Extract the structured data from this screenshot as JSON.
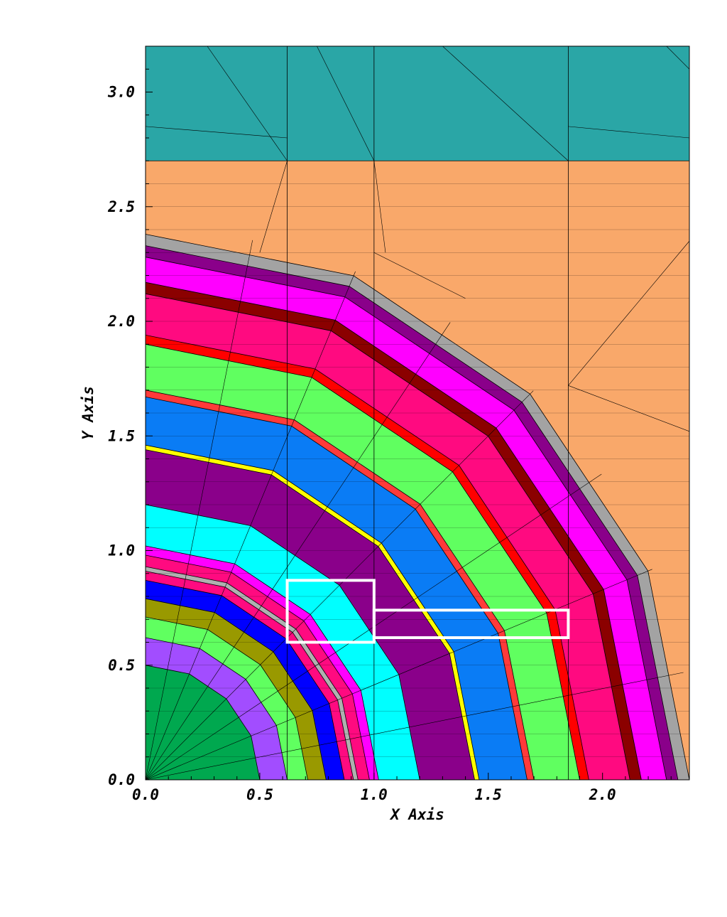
{
  "chart_data": {
    "type": "mesh-region-plot",
    "xlabel": "X Axis",
    "ylabel": "Y Axis",
    "xlim": [
      0.0,
      2.38
    ],
    "ylim": [
      0.0,
      3.2
    ],
    "x_ticks": [
      "0.0",
      "0.5",
      "1.0",
      "1.5",
      "2.0"
    ],
    "x_tick_values": [
      0.0,
      0.5,
      1.0,
      1.5,
      2.0
    ],
    "y_ticks": [
      "0.0",
      "0.5",
      "1.0",
      "1.5",
      "2.0",
      "2.5",
      "3.0"
    ],
    "y_tick_values": [
      0.0,
      0.5,
      1.0,
      1.5,
      2.0,
      2.5,
      3.0
    ],
    "background_regions": [
      {
        "name": "top-band",
        "color": "#2aa6a6",
        "y_from": 2.7,
        "y_to": 3.2
      },
      {
        "name": "upper-band",
        "color": "#f9a86a",
        "y_from": 0.0,
        "y_to": 2.7
      }
    ],
    "rings": [
      {
        "outer_r": 2.38,
        "color": "#a3a3a3"
      },
      {
        "outer_r": 2.33,
        "color": "#8a008a"
      },
      {
        "outer_r": 2.28,
        "color": "#ff00ff"
      },
      {
        "outer_r": 2.17,
        "color": "#8b0000"
      },
      {
        "outer_r": 2.12,
        "color": "#ff0a80"
      },
      {
        "outer_r": 1.94,
        "color": "#ff0000"
      },
      {
        "outer_r": 1.9,
        "color": "#60ff60"
      },
      {
        "outer_r": 1.7,
        "color": "#ff3a3a"
      },
      {
        "outer_r": 1.67,
        "color": "#0a7cf5"
      },
      {
        "outer_r": 1.46,
        "color": "#ffff00"
      },
      {
        "outer_r": 1.44,
        "color": "#8a008a"
      },
      {
        "outer_r": 1.2,
        "color": "#00ffff"
      },
      {
        "outer_r": 1.02,
        "color": "#ff00ff"
      },
      {
        "outer_r": 0.98,
        "color": "#ff0a80"
      },
      {
        "outer_r": 0.93,
        "color": "#b0b0b0"
      },
      {
        "outer_r": 0.91,
        "color": "#ff0a80"
      },
      {
        "outer_r": 0.87,
        "color": "#0000ff"
      },
      {
        "outer_r": 0.79,
        "color": "#999900"
      },
      {
        "outer_r": 0.71,
        "color": "#60ff60"
      },
      {
        "outer_r": 0.62,
        "color": "#a24dff"
      },
      {
        "outer_r": 0.5,
        "color": "#00a84f"
      }
    ],
    "highlight_boxes": [
      {
        "x0": 0.62,
        "x1": 1.0,
        "y0": 0.6,
        "y1": 0.87,
        "color": "#ffffff"
      },
      {
        "x0": 1.0,
        "x1": 1.85,
        "y0": 0.62,
        "y1": 0.74,
        "color": "#ffffff"
      }
    ],
    "grid_x": [
      0.62,
      1.0,
      1.85
    ],
    "grid_y": [
      2.7
    ]
  }
}
